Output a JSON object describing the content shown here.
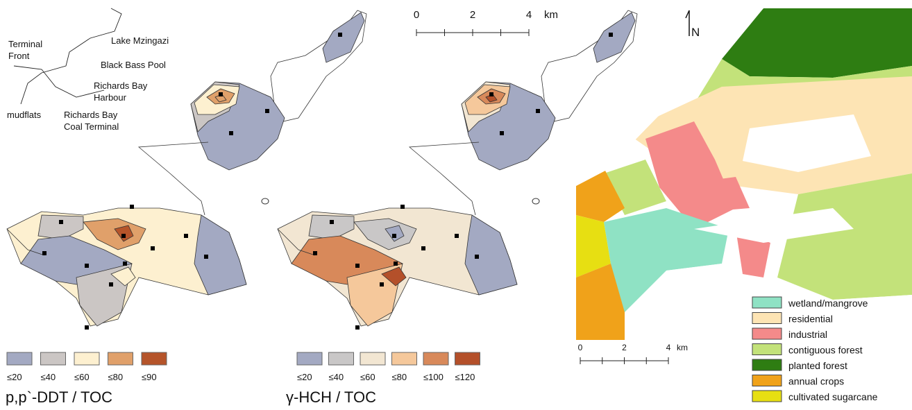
{
  "panels": [
    {
      "site_labels": [
        {
          "lines": [
            "Terminal",
            "Front"
          ]
        },
        {
          "lines": [
            "Lake Mzingazi"
          ]
        },
        {
          "lines": [
            "Black Bass Pool"
          ]
        },
        {
          "lines": [
            "Richards Bay",
            "Harbour"
          ]
        },
        {
          "lines": [
            "mudflats"
          ]
        },
        {
          "lines": [
            "Richards Bay",
            "Coal Terminal"
          ]
        }
      ],
      "legend": [
        {
          "label": "≤20",
          "color": "#a3a9c2"
        },
        {
          "label": "≤40",
          "color": "#cbc6c4"
        },
        {
          "label": "≤60",
          "color": "#fdf0d0"
        },
        {
          "label": "≤80",
          "color": "#e0a06a"
        },
        {
          "label": "≤90",
          "color": "#b5542a"
        }
      ],
      "title": "p,p`-DDT / TOC"
    },
    {
      "legend": [
        {
          "label": "≤20",
          "color": "#a3a9c2"
        },
        {
          "label": "≤40",
          "color": "#c9c7c7"
        },
        {
          "label": "≤60",
          "color": "#f2e6d2"
        },
        {
          "label": "≤80",
          "color": "#f5c89b"
        },
        {
          "label": "≤100",
          "color": "#d8895a"
        },
        {
          "label": "≤120",
          "color": "#b4502a"
        }
      ],
      "title": "γ-HCH / TOC"
    },
    {
      "north": "N",
      "legend": [
        {
          "label": "wetland/mangrove",
          "color": "#8fe2c4"
        },
        {
          "label": "residential",
          "color": "#fde4b4"
        },
        {
          "label": "industrial",
          "color": "#f48a8a"
        },
        {
          "label": "contiguous forest",
          "color": "#c3e27a"
        },
        {
          "label": "planted forest",
          "color": "#2e7d12"
        },
        {
          "label": "annual crops",
          "color": "#f0a21a"
        },
        {
          "label": "cultivated sugarcane",
          "color": "#e7df12"
        }
      ]
    }
  ],
  "scale_bars": [
    {
      "labels": [
        "0",
        "2",
        "4"
      ],
      "unit": "km"
    },
    {
      "labels": [
        "0",
        "2",
        "4"
      ],
      "unit": "km"
    }
  ]
}
